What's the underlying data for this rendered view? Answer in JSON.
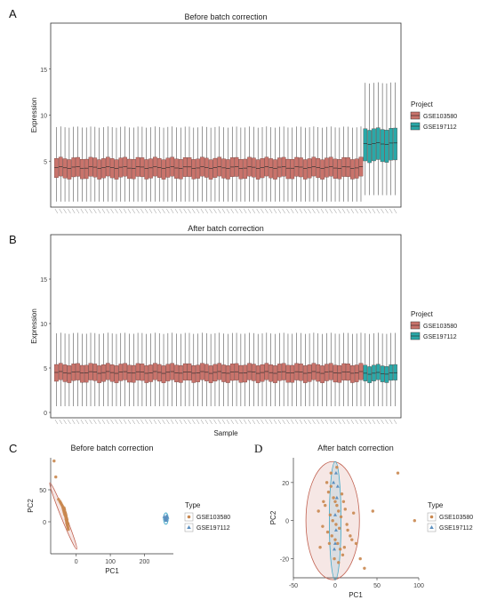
{
  "panel_labels": {
    "a": "A",
    "b": "B",
    "c": "C",
    "d": "D"
  },
  "colors": {
    "gse103580": "#c9736b",
    "gse197112": "#2aa8a8",
    "ellipse_red": "#c0604f",
    "ellipse_blue": "#3fa8c8"
  },
  "legend_boxplot": {
    "title": "Project",
    "items": [
      "GSE103580",
      "GSE197112"
    ]
  },
  "legend_pca": {
    "title": "Type",
    "items": [
      "GSE103580",
      "GSE197112"
    ]
  },
  "chart_data": [
    {
      "type": "box",
      "title": "Before batch correction",
      "ylabel": "Expression",
      "xlabel": "",
      "ylim": [
        0,
        20
      ],
      "yticks": [
        "5",
        "10",
        "15"
      ],
      "groups": [
        {
          "name": "GSE103580",
          "n": 72,
          "whisker_low": 0.6,
          "q1": 3.2,
          "median": 4.3,
          "q3": 5.3,
          "whisker_high": 8.7
        },
        {
          "name": "GSE197112",
          "n": 8,
          "whisker_low": 1.3,
          "q1": 5.0,
          "median": 6.9,
          "q3": 8.5,
          "whisker_high": 13.5
        }
      ]
    },
    {
      "type": "box",
      "title": "After batch correction",
      "ylabel": "Expression",
      "xlabel": "Sample",
      "ylim": [
        -0.6,
        20
      ],
      "yticks": [
        "0",
        "5",
        "10",
        "15"
      ],
      "groups": [
        {
          "name": "GSE103580",
          "n": 72,
          "whisker_low": 0.7,
          "q1": 3.5,
          "median": 4.5,
          "q3": 5.4,
          "whisker_high": 8.9
        },
        {
          "name": "GSE197112",
          "n": 8,
          "whisker_low": 0.7,
          "q1": 3.5,
          "median": 4.4,
          "q3": 5.3,
          "whisker_high": 8.9
        }
      ]
    },
    {
      "type": "scatter",
      "title": "Before batch correction",
      "xlabel": "PC1",
      "ylabel": "PC2",
      "xlim": [
        -75,
        285
      ],
      "ylim": [
        -50,
        100
      ],
      "xticks": [
        "0",
        "100",
        "200"
      ],
      "yticks": [
        "0",
        "50"
      ],
      "series": [
        {
          "name": "GSE103580",
          "points": [
            [
              -65,
              95
            ],
            [
              -60,
              70
            ],
            [
              -52,
              35
            ],
            [
              -48,
              32
            ],
            [
              -46,
              30
            ],
            [
              -44,
              28
            ],
            [
              -42,
              26
            ],
            [
              -40,
              24
            ],
            [
              -39,
              22
            ],
            [
              -38,
              20
            ],
            [
              -37,
              18
            ],
            [
              -36,
              16
            ],
            [
              -35,
              14
            ],
            [
              -34,
              12
            ],
            [
              -33,
              11
            ],
            [
              -32,
              10
            ],
            [
              -31,
              8
            ],
            [
              -30,
              6
            ],
            [
              -30,
              4
            ],
            [
              -29,
              2
            ],
            [
              -28,
              0
            ],
            [
              -28,
              -2
            ],
            [
              -27,
              -4
            ],
            [
              -26,
              -6
            ],
            [
              -25,
              -8
            ],
            [
              -24,
              -10
            ],
            [
              -23,
              -12
            ],
            [
              -35,
              20
            ],
            [
              -33,
              15
            ],
            [
              -31,
              12
            ],
            [
              -29,
              7
            ],
            [
              -27,
              3
            ],
            [
              -26,
              -1
            ],
            [
              -36,
              22
            ],
            [
              -34,
              18
            ],
            [
              -30,
              10
            ],
            [
              -28,
              5
            ],
            [
              -24,
              -3
            ],
            [
              -25,
              -5
            ],
            [
              -32,
              14
            ]
          ]
        },
        {
          "name": "GSE197112",
          "points": [
            [
              258,
              8
            ],
            [
              260,
              5
            ],
            [
              262,
              3
            ],
            [
              263,
              6
            ],
            [
              264,
              2
            ],
            [
              265,
              9
            ],
            [
              266,
              4
            ],
            [
              268,
              7
            ]
          ]
        }
      ]
    },
    {
      "type": "scatter",
      "title": "After batch correction",
      "xlabel": "PC1",
      "ylabel": "PC2",
      "xlim": [
        -50,
        100
      ],
      "ylim": [
        -30,
        33
      ],
      "xticks": [
        "-50",
        "0",
        "50",
        "100"
      ],
      "yticks": [
        "-20",
        "0",
        "20"
      ],
      "series": [
        {
          "name": "GSE103580",
          "points": [
            [
              -10,
              20
            ],
            [
              -8,
              15
            ],
            [
              -5,
              18
            ],
            [
              -2,
              12
            ],
            [
              0,
              10
            ],
            [
              2,
              8
            ],
            [
              4,
              5
            ],
            [
              -6,
              3
            ],
            [
              -3,
              0
            ],
            [
              1,
              -2
            ],
            [
              5,
              -4
            ],
            [
              7,
              2
            ],
            [
              -9,
              -6
            ],
            [
              -4,
              -8
            ],
            [
              0,
              -10
            ],
            [
              3,
              -12
            ],
            [
              6,
              -15
            ],
            [
              -7,
              -12
            ],
            [
              10,
              10
            ],
            [
              12,
              6
            ],
            [
              15,
              -5
            ],
            [
              18,
              -8
            ],
            [
              20,
              -10
            ],
            [
              -12,
              8
            ],
            [
              -15,
              -3
            ],
            [
              -18,
              -14
            ],
            [
              8,
              14
            ],
            [
              9,
              -18
            ],
            [
              -1,
              -20
            ],
            [
              4,
              -22
            ],
            [
              25,
              -12
            ],
            [
              30,
              -20
            ],
            [
              35,
              -25
            ],
            [
              45,
              5
            ],
            [
              75,
              25
            ],
            [
              95,
              0
            ],
            [
              -20,
              5
            ],
            [
              22,
              4
            ],
            [
              14,
              -2
            ],
            [
              -5,
              25
            ],
            [
              2,
              28
            ],
            [
              -14,
              10
            ],
            [
              11,
              -14
            ]
          ]
        },
        {
          "name": "GSE197112",
          "points": [
            [
              -1,
              -15
            ],
            [
              1,
              -5
            ],
            [
              0,
              3
            ],
            [
              2,
              12
            ],
            [
              -2,
              20
            ],
            [
              1,
              25
            ],
            [
              0,
              -12
            ],
            [
              3,
              18
            ]
          ]
        }
      ]
    }
  ]
}
